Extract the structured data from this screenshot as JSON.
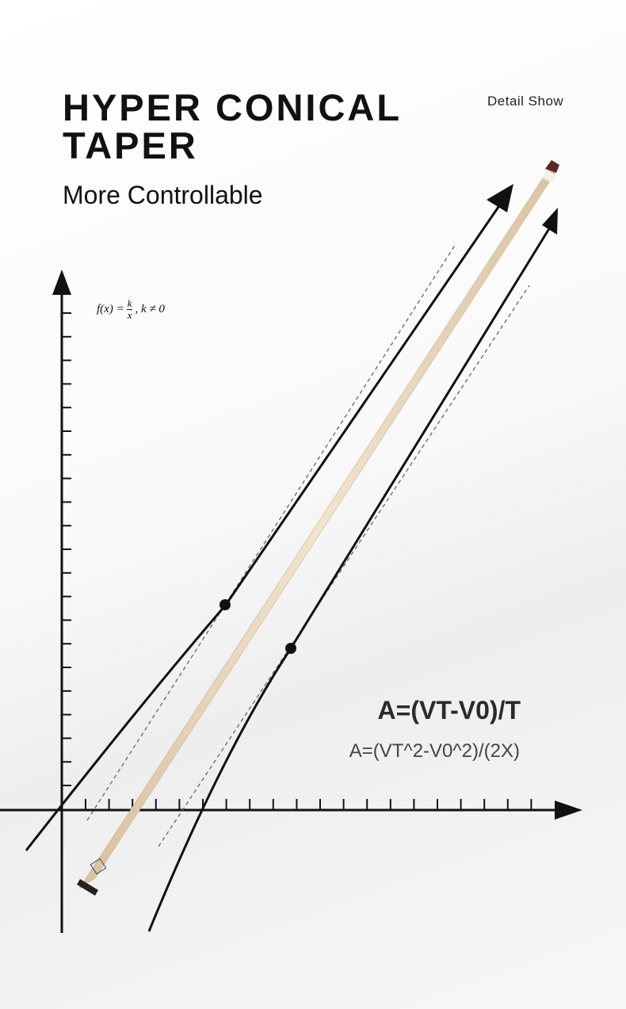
{
  "header": {
    "title_line1": "HYPER CONICAL",
    "title_line2": "TAPER",
    "subtitle": "More Controllable",
    "tag": "Detail Show"
  },
  "formula": {
    "lhs": "f(x) =",
    "numerator": "k",
    "denominator": "x",
    "rest": ", k ≠ 0"
  },
  "equations": {
    "primary": "A=(VT-V0)/T",
    "secondary": "A=(VT^2-V0^2)/(2X)"
  }
}
